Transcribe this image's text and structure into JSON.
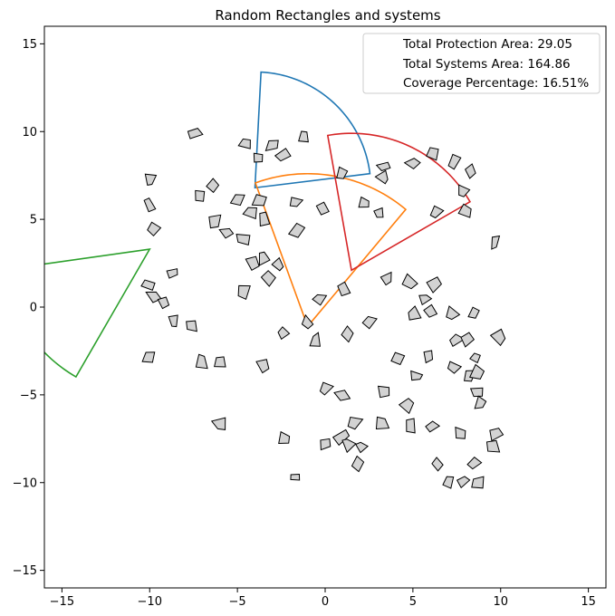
{
  "chart_data": {
    "type": "scatter",
    "title": "Random Rectangles and systems",
    "xlabel": "",
    "ylabel": "",
    "xlim": [
      -16,
      16
    ],
    "ylim": [
      -16,
      16
    ],
    "xticks": [
      -15,
      -10,
      -5,
      0,
      5,
      10,
      15
    ],
    "yticks": [
      -15,
      -10,
      -5,
      0,
      5,
      10,
      15
    ],
    "grid": false,
    "legend_position": "top-right",
    "legend": [
      "Total Protection Area: 29.05",
      "Total Systems Area: 164.86",
      "Coverage Percentage: 16.51%"
    ],
    "sectors": [
      {
        "color": "#1f77b4",
        "apex": [
          -4.0,
          6.8
        ],
        "radius": 6.6,
        "start_deg": 7,
        "end_deg": 87
      },
      {
        "color": "#ff7f0e",
        "apex": [
          -1.0,
          -1.1
        ],
        "radius": 8.7,
        "start_deg": 50,
        "end_deg": 110
      },
      {
        "color": "#d62728",
        "apex": [
          1.5,
          2.1
        ],
        "radius": 7.8,
        "start_deg": 30,
        "end_deg": 100
      },
      {
        "color": "#2ca02c",
        "apex": [
          -10.0,
          3.3
        ],
        "radius": 8.4,
        "start_deg": 188,
        "end_deg": 240
      }
    ],
    "rectangle_style": {
      "fill": "#d3d3d3",
      "stroke": "#000000"
    },
    "rectangles": [
      [
        -7.4,
        9.9
      ],
      [
        -4.5,
        9.3
      ],
      [
        -3.0,
        9.2
      ],
      [
        -1.2,
        9.7
      ],
      [
        -2.4,
        8.7
      ],
      [
        -3.8,
        8.5
      ],
      [
        -10.0,
        7.3
      ],
      [
        -6.4,
        7.0
      ],
      [
        -7.2,
        6.3
      ],
      [
        -10.0,
        5.8
      ],
      [
        -5.0,
        6.1
      ],
      [
        -3.8,
        6.1
      ],
      [
        -1.7,
        6.0
      ],
      [
        -4.3,
        5.4
      ],
      [
        -3.5,
        5.0
      ],
      [
        -0.1,
        5.6
      ],
      [
        -6.3,
        4.9
      ],
      [
        -5.6,
        4.2
      ],
      [
        -4.7,
        3.9
      ],
      [
        -1.6,
        4.3
      ],
      [
        -9.8,
        4.5
      ],
      [
        -8.7,
        1.9
      ],
      [
        -4.1,
        2.5
      ],
      [
        -3.5,
        2.8
      ],
      [
        -2.7,
        2.5
      ],
      [
        -3.2,
        1.6
      ],
      [
        -10.0,
        1.2
      ],
      [
        -9.8,
        0.6
      ],
      [
        -4.6,
        0.9
      ],
      [
        -9.2,
        0.3
      ],
      [
        -8.6,
        -0.8
      ],
      [
        -7.6,
        -1.1
      ],
      [
        -0.3,
        0.4
      ],
      [
        1.1,
        1.0
      ],
      [
        3.5,
        1.6
      ],
      [
        4.8,
        1.5
      ],
      [
        6.2,
        1.3
      ],
      [
        5.7,
        0.4
      ],
      [
        5.1,
        -0.4
      ],
      [
        7.2,
        -0.4
      ],
      [
        8.5,
        -0.3
      ],
      [
        2.6,
        -0.8
      ],
      [
        -1.0,
        -0.9
      ],
      [
        -2.4,
        -1.5
      ],
      [
        -0.5,
        -1.9
      ],
      [
        1.3,
        -1.5
      ],
      [
        7.5,
        -1.9
      ],
      [
        8.1,
        -1.9
      ],
      [
        9.9,
        -1.7
      ],
      [
        -10.0,
        -2.9
      ],
      [
        -7.0,
        -3.1
      ],
      [
        -6.0,
        -3.2
      ],
      [
        -3.6,
        -3.3
      ],
      [
        4.2,
        -3.0
      ],
      [
        5.9,
        -2.8
      ],
      [
        8.6,
        -2.9
      ],
      [
        5.2,
        -3.9
      ],
      [
        7.3,
        -3.4
      ],
      [
        8.2,
        -3.9
      ],
      [
        8.6,
        -3.7
      ],
      [
        0.0,
        -4.6
      ],
      [
        1.0,
        -5.0
      ],
      [
        3.4,
        -4.8
      ],
      [
        8.7,
        -4.8
      ],
      [
        8.8,
        -5.5
      ],
      [
        4.6,
        -5.6
      ],
      [
        -6.0,
        -6.6
      ],
      [
        1.7,
        -6.6
      ],
      [
        3.2,
        -6.7
      ],
      [
        4.9,
        -6.8
      ],
      [
        6.1,
        -6.8
      ],
      [
        7.6,
        -7.2
      ],
      [
        9.7,
        -7.2
      ],
      [
        9.6,
        -7.9
      ],
      [
        -2.3,
        -7.5
      ],
      [
        0.0,
        -7.8
      ],
      [
        0.9,
        -7.4
      ],
      [
        1.3,
        -7.8
      ],
      [
        2.1,
        -8.0
      ],
      [
        6.4,
        -8.9
      ],
      [
        8.5,
        -8.9
      ],
      [
        1.8,
        -8.9
      ],
      [
        -1.7,
        -9.7
      ],
      [
        7.1,
        -9.9
      ],
      [
        7.8,
        -9.9
      ],
      [
        8.7,
        -10.0
      ],
      [
        6.0,
        -0.3
      ],
      [
        3.3,
        7.4
      ],
      [
        3.4,
        8.0
      ],
      [
        5.0,
        8.2
      ],
      [
        6.1,
        8.8
      ],
      [
        7.3,
        8.3
      ],
      [
        8.3,
        7.8
      ],
      [
        7.9,
        6.6
      ],
      [
        8.0,
        5.5
      ],
      [
        6.3,
        5.4
      ],
      [
        1.0,
        7.6
      ],
      [
        2.2,
        5.9
      ],
      [
        3.1,
        5.4
      ],
      [
        9.7,
        3.7
      ]
    ]
  }
}
